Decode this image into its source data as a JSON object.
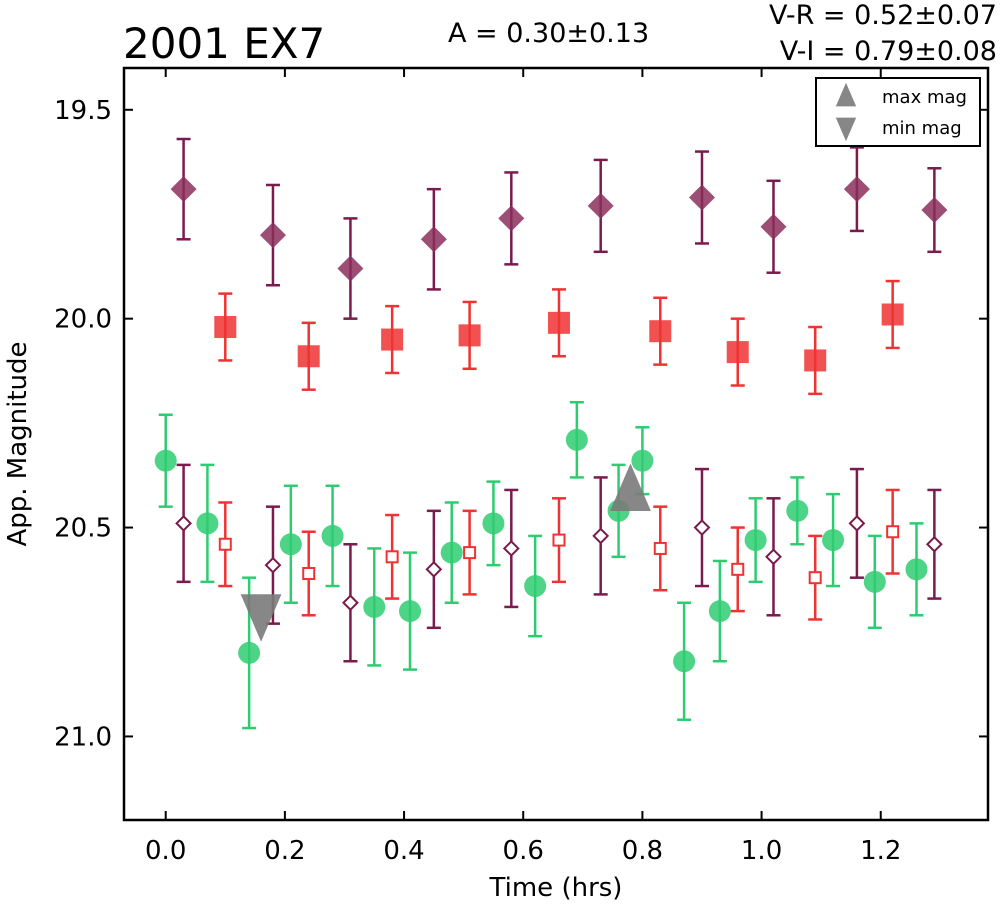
{
  "chart_data": {
    "type": "scatter",
    "title": "2001 EX7",
    "annotations": {
      "amplitude": "A  = 0.30±0.13",
      "v_r": "V-R = 0.52±0.07",
      "v_i": "V-I  = 0.79±0.08"
    },
    "xlabel": "Time (hrs)",
    "ylabel": "App. Magnitude",
    "xlim": [
      -0.07,
      1.38
    ],
    "ylim": [
      21.2,
      19.4
    ],
    "y_inverted": true,
    "x_ticks": [
      "0.0",
      "0.2",
      "0.4",
      "0.6",
      "0.8",
      "1.0",
      "1.2"
    ],
    "y_ticks": [
      "19.5",
      "20.0",
      "20.5",
      "21.0"
    ],
    "grid": false,
    "legend": {
      "placement": "top-right",
      "entries": [
        {
          "label": "max mag",
          "marker": "triangle-up"
        },
        {
          "label": "min mag",
          "marker": "triangle-down"
        }
      ]
    },
    "colors": {
      "v_band": "#2ecc71",
      "r_band": "#f03232",
      "i_band": "#7a1a4d",
      "i_band_fill": "#8b2f5c",
      "extremum": "#7a7a7a"
    },
    "series": [
      {
        "id": "i-observed",
        "marker": "diamond-filled",
        "color": "i_band",
        "points": [
          {
            "x": 0.03,
            "y": 19.69,
            "err": 0.12
          },
          {
            "x": 0.18,
            "y": 19.8,
            "err": 0.12
          },
          {
            "x": 0.31,
            "y": 19.88,
            "err": 0.12
          },
          {
            "x": 0.45,
            "y": 19.81,
            "err": 0.12
          },
          {
            "x": 0.58,
            "y": 19.76,
            "err": 0.11
          },
          {
            "x": 0.73,
            "y": 19.73,
            "err": 0.11
          },
          {
            "x": 0.9,
            "y": 19.71,
            "err": 0.11
          },
          {
            "x": 1.02,
            "y": 19.78,
            "err": 0.11
          },
          {
            "x": 1.16,
            "y": 19.69,
            "err": 0.1
          },
          {
            "x": 1.29,
            "y": 19.74,
            "err": 0.1
          }
        ]
      },
      {
        "id": "r-observed",
        "marker": "square-filled",
        "color": "r_band",
        "points": [
          {
            "x": 0.1,
            "y": 20.02,
            "err": 0.08
          },
          {
            "x": 0.24,
            "y": 20.09,
            "err": 0.08
          },
          {
            "x": 0.38,
            "y": 20.05,
            "err": 0.08
          },
          {
            "x": 0.51,
            "y": 20.04,
            "err": 0.08
          },
          {
            "x": 0.66,
            "y": 20.01,
            "err": 0.08
          },
          {
            "x": 0.83,
            "y": 20.03,
            "err": 0.08
          },
          {
            "x": 0.96,
            "y": 20.08,
            "err": 0.08
          },
          {
            "x": 1.09,
            "y": 20.1,
            "err": 0.08
          },
          {
            "x": 1.22,
            "y": 19.99,
            "err": 0.08
          }
        ]
      },
      {
        "id": "v-observed",
        "marker": "circle-filled",
        "color": "v_band",
        "points": [
          {
            "x": 0.0,
            "y": 20.34,
            "err": 0.11
          },
          {
            "x": 0.07,
            "y": 20.49,
            "err": 0.14
          },
          {
            "x": 0.14,
            "y": 20.8,
            "err": 0.18
          },
          {
            "x": 0.21,
            "y": 20.54,
            "err": 0.14
          },
          {
            "x": 0.28,
            "y": 20.52,
            "err": 0.12
          },
          {
            "x": 0.35,
            "y": 20.69,
            "err": 0.14
          },
          {
            "x": 0.41,
            "y": 20.7,
            "err": 0.14
          },
          {
            "x": 0.48,
            "y": 20.56,
            "err": 0.12
          },
          {
            "x": 0.55,
            "y": 20.49,
            "err": 0.1
          },
          {
            "x": 0.62,
            "y": 20.64,
            "err": 0.12
          },
          {
            "x": 0.69,
            "y": 20.29,
            "err": 0.09
          },
          {
            "x": 0.76,
            "y": 20.46,
            "err": 0.11
          },
          {
            "x": 0.8,
            "y": 20.34,
            "err": 0.08
          },
          {
            "x": 0.87,
            "y": 20.82,
            "err": 0.14
          },
          {
            "x": 0.93,
            "y": 20.7,
            "err": 0.12
          },
          {
            "x": 0.99,
            "y": 20.53,
            "err": 0.1
          },
          {
            "x": 1.06,
            "y": 20.46,
            "err": 0.08
          },
          {
            "x": 1.12,
            "y": 20.53,
            "err": 0.11
          },
          {
            "x": 1.19,
            "y": 20.63,
            "err": 0.11
          },
          {
            "x": 1.26,
            "y": 20.6,
            "err": 0.11
          }
        ]
      },
      {
        "id": "i-corrected",
        "marker": "diamond-open",
        "color": "i_band",
        "points": [
          {
            "x": 0.03,
            "y": 20.49,
            "err": 0.14
          },
          {
            "x": 0.18,
            "y": 20.59,
            "err": 0.14
          },
          {
            "x": 0.31,
            "y": 20.68,
            "err": 0.14
          },
          {
            "x": 0.45,
            "y": 20.6,
            "err": 0.14
          },
          {
            "x": 0.58,
            "y": 20.55,
            "err": 0.14
          },
          {
            "x": 0.73,
            "y": 20.52,
            "err": 0.14
          },
          {
            "x": 0.9,
            "y": 20.5,
            "err": 0.14
          },
          {
            "x": 1.02,
            "y": 20.57,
            "err": 0.14
          },
          {
            "x": 1.16,
            "y": 20.49,
            "err": 0.13
          },
          {
            "x": 1.29,
            "y": 20.54,
            "err": 0.13
          }
        ]
      },
      {
        "id": "r-corrected",
        "marker": "square-open",
        "color": "r_band",
        "points": [
          {
            "x": 0.1,
            "y": 20.54,
            "err": 0.1
          },
          {
            "x": 0.24,
            "y": 20.61,
            "err": 0.1
          },
          {
            "x": 0.38,
            "y": 20.57,
            "err": 0.1
          },
          {
            "x": 0.51,
            "y": 20.56,
            "err": 0.1
          },
          {
            "x": 0.66,
            "y": 20.53,
            "err": 0.1
          },
          {
            "x": 0.83,
            "y": 20.55,
            "err": 0.1
          },
          {
            "x": 0.96,
            "y": 20.6,
            "err": 0.1
          },
          {
            "x": 1.09,
            "y": 20.62,
            "err": 0.1
          },
          {
            "x": 1.22,
            "y": 20.51,
            "err": 0.1
          }
        ]
      }
    ],
    "extrema": [
      {
        "label": "min mag",
        "x": 0.16,
        "y": 20.7,
        "marker": "triangle-down"
      },
      {
        "label": "max mag",
        "x": 0.78,
        "y": 20.42,
        "marker": "triangle-up"
      }
    ]
  }
}
